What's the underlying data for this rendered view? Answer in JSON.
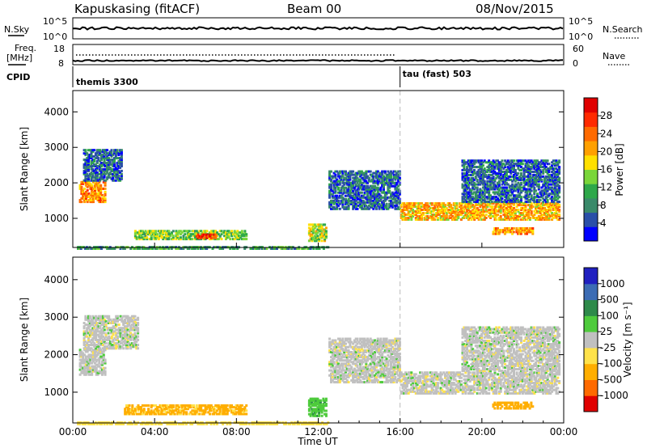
{
  "header": {
    "station": "Kapuskasing (fitACF)",
    "beam": "Beam 00",
    "date": "08/Nov/2015"
  },
  "top_panels": {
    "nsky_label": "N.Sky",
    "nsky_ticks": [
      "10^5",
      "10^0"
    ],
    "nsky_right_ticks": [
      "10^5",
      "10^0"
    ],
    "nsearch_label": "N.Search",
    "freq_label_line1": "Freq.",
    "freq_label_line2": "[MHz]",
    "freq_ticks": [
      "18",
      "8"
    ],
    "nave_ticks": [
      "60",
      "0"
    ],
    "nave_label": "Nave",
    "cpid_label": "CPID",
    "cpid_segments": [
      {
        "name": "themis 3300",
        "start_hour": 0
      },
      {
        "name": "tau (fast) 503",
        "start_hour": 16
      }
    ]
  },
  "colors": {
    "power_palette": [
      "#0000ff",
      "#2a4fa8",
      "#3a8a6a",
      "#2ea84a",
      "#7ad63a",
      "#ffe000",
      "#ffa000",
      "#ff6a00",
      "#ff2a00",
      "#e00000"
    ],
    "velocity_palette": [
      "#2020c0",
      "#3c6cb4",
      "#2e8a4a",
      "#4ecb3c",
      "#c0c0c0",
      "#ffe24a",
      "#ffae00",
      "#ff6a00",
      "#e00000"
    ],
    "ground_scatter": "#c0c0c0"
  },
  "chart_data": [
    {
      "type": "heatmap",
      "name": "power",
      "xlabel": "",
      "ylabel": "Slant Range [km]",
      "xlim": [
        0,
        24
      ],
      "ylim": [
        180,
        4600
      ],
      "ytick_values": [
        1000,
        2000,
        3000,
        4000
      ],
      "yticks": [
        "1000",
        "2000",
        "3000",
        "4000"
      ],
      "colorbar_label": "Power [dB]",
      "colorbar_ticks": [
        "28",
        "24",
        "20",
        "16",
        "12",
        "8",
        "4"
      ],
      "colorbar_range": [
        0,
        32
      ],
      "regions": [
        {
          "t0": 0.3,
          "t1": 1.6,
          "r0": 1500,
          "r1": 2100,
          "v": 22
        },
        {
          "t0": 0.5,
          "t1": 2.4,
          "r0": 2100,
          "r1": 3000,
          "v": 6
        },
        {
          "t0": 3.0,
          "t1": 8.5,
          "r0": 450,
          "r1": 720,
          "v": 14
        },
        {
          "t0": 6.0,
          "t1": 7.0,
          "r0": 480,
          "r1": 620,
          "v": 28
        },
        {
          "t0": 0.2,
          "t1": 12.5,
          "r0": 180,
          "r1": 260,
          "v": 10
        },
        {
          "t0": 11.5,
          "t1": 12.4,
          "r0": 400,
          "r1": 900,
          "v": 16
        },
        {
          "t0": 12.5,
          "t1": 16.0,
          "r0": 1300,
          "r1": 2400,
          "v": 6
        },
        {
          "t0": 16.0,
          "t1": 23.8,
          "r0": 1000,
          "r1": 1500,
          "v": 20
        },
        {
          "t0": 19.0,
          "t1": 23.8,
          "r0": 1500,
          "r1": 2700,
          "v": 6
        },
        {
          "t0": 20.5,
          "t1": 22.5,
          "r0": 600,
          "r1": 800,
          "v": 22
        }
      ]
    },
    {
      "type": "heatmap",
      "name": "velocity",
      "xlabel": "Time UT",
      "ylabel": "Slant Range [km]",
      "xlim": [
        0,
        24
      ],
      "ylim": [
        180,
        4600
      ],
      "xtick_values": [
        0,
        4,
        8,
        12,
        16,
        20,
        24
      ],
      "xticks": [
        "00:00",
        "04:00",
        "08:00",
        "12:00",
        "16:00",
        "20:00",
        "00:00"
      ],
      "ytick_values": [
        1000,
        2000,
        3000,
        4000
      ],
      "yticks": [
        "1000",
        "2000",
        "3000",
        "4000"
      ],
      "colorbar_label": "Velocity [m s⁻¹]",
      "colorbar_ticks": [
        "1000",
        "500",
        "100",
        "25",
        "-25",
        "-100",
        "-500",
        "-1000"
      ],
      "regions": [
        {
          "t0": 0.3,
          "t1": 1.6,
          "r0": 1500,
          "r1": 2200,
          "v": 0
        },
        {
          "t0": 0.5,
          "t1": 3.2,
          "r0": 2200,
          "r1": 3100,
          "v": 0
        },
        {
          "t0": 2.5,
          "t1": 8.5,
          "r0": 450,
          "r1": 720,
          "v": -120
        },
        {
          "t0": 0.2,
          "t1": 12.5,
          "r0": 180,
          "r1": 260,
          "v": -60
        },
        {
          "t0": 11.5,
          "t1": 12.4,
          "r0": 400,
          "r1": 900,
          "v": 80
        },
        {
          "t0": 12.5,
          "t1": 16.0,
          "r0": 1300,
          "r1": 2500,
          "v": 0
        },
        {
          "t0": 16.0,
          "t1": 23.8,
          "r0": 1000,
          "r1": 1600,
          "v": 0
        },
        {
          "t0": 19.0,
          "t1": 23.8,
          "r0": 1600,
          "r1": 2800,
          "v": 0
        },
        {
          "t0": 20.5,
          "t1": 22.5,
          "r0": 600,
          "r1": 800,
          "v": -300
        }
      ]
    }
  ]
}
